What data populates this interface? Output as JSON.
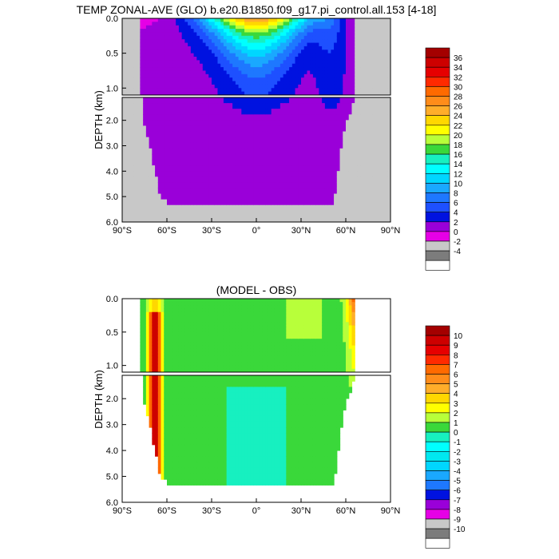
{
  "chart_data": [
    {
      "type": "heatmap",
      "title": "TEMP ZONAL-AVE (GLO) b.e20.B1850.f09_g17.pi_control.all.153 [4-18]",
      "xlabel": "",
      "ylabel": "DEPTH (km)",
      "xlim": [
        -90,
        90
      ],
      "ylim_upper_panel": [
        0.0,
        1.1
      ],
      "ylim_lower_panel": [
        1.1,
        6.0
      ],
      "x_ticks": [
        {
          "value": -90,
          "label": "90°S"
        },
        {
          "value": -60,
          "label": "60°S"
        },
        {
          "value": -30,
          "label": "30°S"
        },
        {
          "value": 0,
          "label": "0°"
        },
        {
          "value": 30,
          "label": "30°N"
        },
        {
          "value": 60,
          "label": "60°N"
        },
        {
          "value": 90,
          "label": "90°N"
        }
      ],
      "y_ticks_upper": [
        {
          "value": 0.0,
          "label": "0.0"
        },
        {
          "value": 0.5,
          "label": "0.5"
        },
        {
          "value": 1.0,
          "label": "1.0"
        }
      ],
      "y_ticks_lower": [
        {
          "value": 2.0,
          "label": "2.0"
        },
        {
          "value": 3.0,
          "label": "3.0"
        },
        {
          "value": 4.0,
          "label": "4.0"
        },
        {
          "value": 5.0,
          "label": "5.0"
        },
        {
          "value": 6.0,
          "label": "6.0"
        }
      ],
      "colorbar": {
        "labels": [
          "36",
          "34",
          "32",
          "30",
          "28",
          "26",
          "24",
          "22",
          "20",
          "18",
          "16",
          "14",
          "12",
          "10",
          "8",
          "6",
          "4",
          "2",
          "0",
          "-2",
          "-4"
        ],
        "colors": [
          "#a40000",
          "#cd0000",
          "#e60000",
          "#ff2a00",
          "#ff6a00",
          "#ff8c1a",
          "#ffad2a",
          "#ffd700",
          "#ffff00",
          "#b8ff3a",
          "#3ad83a",
          "#17f0c0",
          "#00ffff",
          "#00d6ff",
          "#1aa8ff",
          "#1e78ff",
          "#1e50ff",
          "#0012e0",
          "#9a00d9",
          "#e600e6",
          "#c8c8c8",
          "#7c7c7c",
          "#ffffff"
        ]
      },
      "field": {
        "ocean_lat_range": [
          -78,
          67
        ],
        "surface_max_temp": 28,
        "deep_temp": 1
      }
    },
    {
      "type": "heatmap",
      "title": "(MODEL - OBS)",
      "xlabel": "",
      "ylabel": "DEPTH (km)",
      "xlim": [
        -90,
        90
      ],
      "ylim_upper_panel": [
        0.0,
        1.1
      ],
      "ylim_lower_panel": [
        1.1,
        6.0
      ],
      "x_ticks": [
        {
          "value": -90,
          "label": "90°S"
        },
        {
          "value": -60,
          "label": "60°S"
        },
        {
          "value": -30,
          "label": "30°S"
        },
        {
          "value": 0,
          "label": "0°"
        },
        {
          "value": 30,
          "label": "30°N"
        },
        {
          "value": 60,
          "label": "60°N"
        },
        {
          "value": 90,
          "label": "90°N"
        }
      ],
      "y_ticks_upper": [
        {
          "value": 0.0,
          "label": "0.0"
        },
        {
          "value": 0.5,
          "label": "0.5"
        },
        {
          "value": 1.0,
          "label": "1.0"
        }
      ],
      "y_ticks_lower": [
        {
          "value": 2.0,
          "label": "2.0"
        },
        {
          "value": 3.0,
          "label": "3.0"
        },
        {
          "value": 4.0,
          "label": "4.0"
        },
        {
          "value": 5.0,
          "label": "5.0"
        },
        {
          "value": 6.0,
          "label": "6.0"
        }
      ],
      "colorbar": {
        "labels": [
          "10",
          "9",
          "8",
          "7",
          "6",
          "5",
          "4",
          "3",
          "2",
          "1",
          "0",
          "-1",
          "-2",
          "-3",
          "-4",
          "-5",
          "-6",
          "-7",
          "-8",
          "-9",
          "-10"
        ],
        "colors": [
          "#a40000",
          "#cd0000",
          "#e60000",
          "#ff2a00",
          "#ff6a00",
          "#ff8c1a",
          "#ffad2a",
          "#ffd700",
          "#ffff00",
          "#b8ff3a",
          "#3ad83a",
          "#17f0c0",
          "#00ffff",
          "#00e8f0",
          "#00d6ff",
          "#1aa8ff",
          "#1e78ff",
          "#0012e0",
          "#9a00d9",
          "#e600e6",
          "#c8c8c8",
          "#7c7c7c",
          "#ffffff"
        ]
      },
      "field": {
        "dominant_range": [
          -1,
          1
        ],
        "warm_bias_near_antarctic_slope": 10,
        "warm_bias_arctic_surface": 10
      }
    }
  ]
}
